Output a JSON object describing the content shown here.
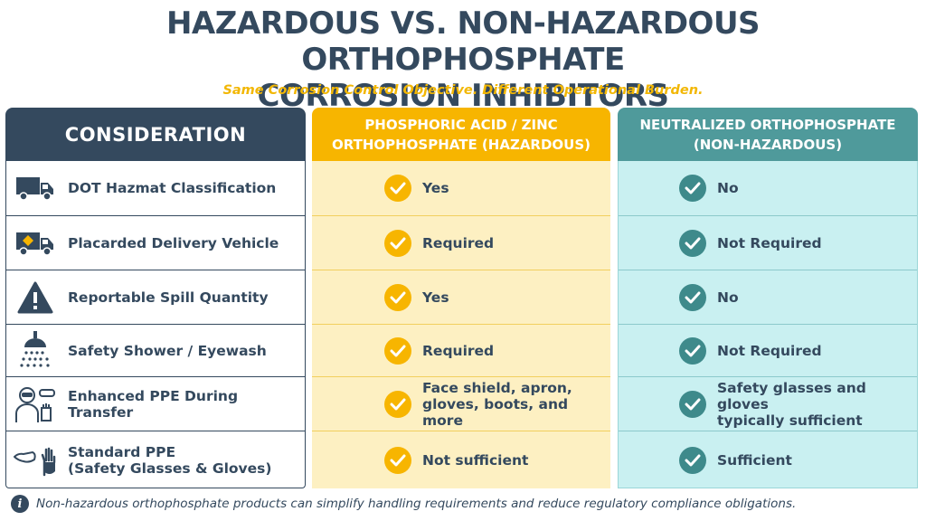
{
  "title_line1": "HAZARDOUS VS. NON-HAZARDOUS ORTHOPHOSPHATE",
  "title_line2": "CORROSION INHIBITORS",
  "subtitle": "Same Corrosion Control Objective. Different Operational Burden.",
  "headers": {
    "consideration": "CONSIDERATION",
    "hazardous_line1": "PHOSPHORIC ACID / ZINC",
    "hazardous_line2": "ORTHOPHOSPHATE (HAZARDOUS)",
    "nonhazardous_line1": "NEUTRALIZED ORTHOPHOSPHATE",
    "nonhazardous_line2": "(NON-HAZARDOUS)"
  },
  "rows": [
    {
      "icon": "truck-icon",
      "label_line1": "DOT Hazmat Classification",
      "label_line2": "",
      "hazardous_line1": "Yes",
      "hazardous_line2": "",
      "nonhazardous_line1": "No",
      "nonhazardous_line2": ""
    },
    {
      "icon": "placarded-truck-icon",
      "label_line1": "Placarded Delivery Vehicle",
      "label_line2": "",
      "hazardous_line1": "Required",
      "hazardous_line2": "",
      "nonhazardous_line1": "Not Required",
      "nonhazardous_line2": ""
    },
    {
      "icon": "warning-triangle-icon",
      "label_line1": "Reportable Spill Quantity",
      "label_line2": "",
      "hazardous_line1": "Yes",
      "hazardous_line2": "",
      "nonhazardous_line1": "No",
      "nonhazardous_line2": ""
    },
    {
      "icon": "shower-icon",
      "label_line1": "Safety Shower / Eyewash",
      "label_line2": "",
      "hazardous_line1": "Required",
      "hazardous_line2": "",
      "nonhazardous_line1": "Not Required",
      "nonhazardous_line2": ""
    },
    {
      "icon": "ppe-worker-icon",
      "label_line1": "Enhanced PPE During Transfer",
      "label_line2": "",
      "hazardous_line1": "Face shield, apron,",
      "hazardous_line2": "gloves, boots, and more",
      "nonhazardous_line1": "Safety glasses and gloves",
      "nonhazardous_line2": "typically sufficient"
    },
    {
      "icon": "glasses-gloves-icon",
      "label_line1": "Standard PPE",
      "label_line2": "(Safety Glasses & Gloves)",
      "hazardous_line1": "Not sufficient",
      "hazardous_line2": "",
      "nonhazardous_line1": "Sufficient",
      "nonhazardous_line2": ""
    }
  ],
  "footer": "Non-hazardous orthophosphate products can simplify handling requirements and reduce regulatory compliance obligations.",
  "colors": {
    "navy": "#34495e",
    "gold": "#f7b500",
    "teal": "#4f9a9b",
    "cream": "#fdf0c2",
    "aqua": "#c9f0f1"
  }
}
